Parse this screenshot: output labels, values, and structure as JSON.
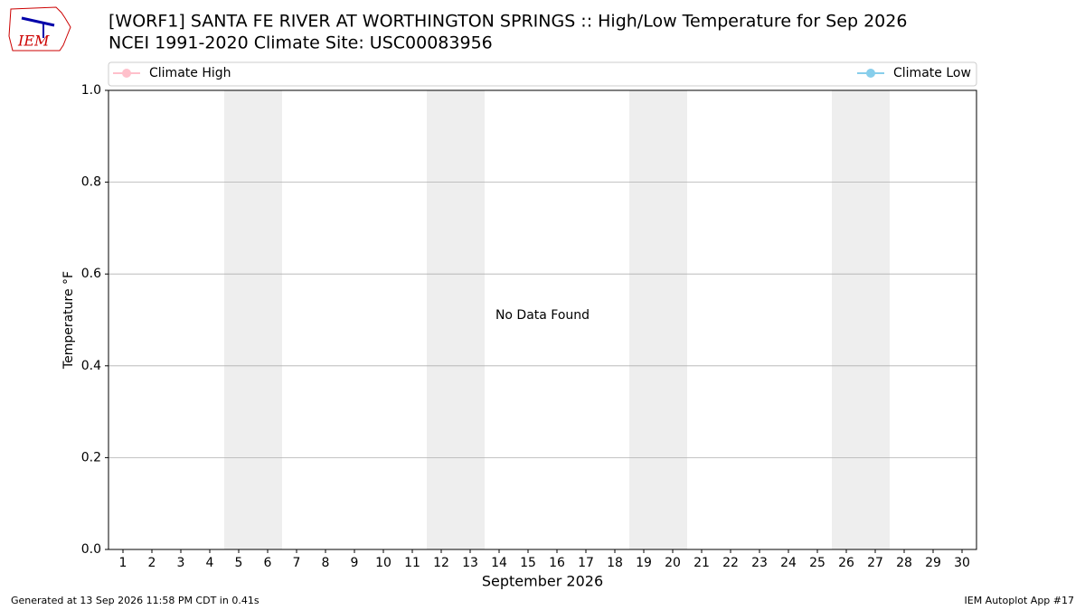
{
  "logo": {
    "text": "IEM"
  },
  "chart_data": {
    "type": "line",
    "title": "[WORF1] SANTA FE RIVER  AT WORTHINGTON SPRINGS :: High/Low Temperature for Sep 2026",
    "subtitle": "NCEI 1991-2020 Climate Site: USC00083956",
    "xlabel": "September 2026",
    "ylabel": "Temperature °F",
    "annotation": "No Data Found",
    "xlim": [
      0.5,
      30.5
    ],
    "xticks": [
      1,
      2,
      3,
      4,
      5,
      6,
      7,
      8,
      9,
      10,
      11,
      12,
      13,
      14,
      15,
      16,
      17,
      18,
      19,
      20,
      21,
      22,
      23,
      24,
      25,
      26,
      27,
      28,
      29,
      30
    ],
    "ylim": [
      0,
      1
    ],
    "yticks": [
      {
        "value": 0,
        "label": "0.0"
      },
      {
        "value": 0.2,
        "label": "0.2"
      },
      {
        "value": 0.4,
        "label": "0.4"
      },
      {
        "value": 0.6,
        "label": "0.6"
      },
      {
        "value": 0.8,
        "label": "0.8"
      },
      {
        "value": 1,
        "label": "1.0"
      }
    ],
    "grid": true,
    "shaded_spans": [
      [
        4.5,
        6.5
      ],
      [
        11.5,
        13.5
      ],
      [
        18.5,
        20.5
      ],
      [
        25.5,
        27.5
      ]
    ],
    "shade_color": "#eeeeee",
    "legend": "above",
    "series": [
      {
        "name": "Climate High",
        "color": "#ffc0cb",
        "x": [],
        "values": []
      },
      {
        "name": "Climate Low",
        "color": "#87ceeb",
        "x": [],
        "values": []
      }
    ],
    "footer_left": "Generated at 13 Sep 2026 11:58 PM CDT in 0.41s",
    "footer_right": "IEM Autoplot App #17"
  }
}
